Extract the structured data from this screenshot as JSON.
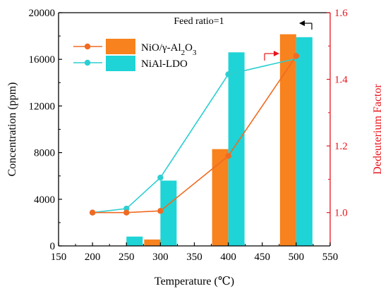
{
  "chart_data": {
    "type": "bar+line",
    "x_axis": {
      "label": "Temperature (℃)",
      "range": [
        150,
        550
      ],
      "ticks": [
        150,
        200,
        250,
        300,
        350,
        400,
        450,
        500,
        550
      ]
    },
    "y_axis_left": {
      "label": "Concentration (ppm)",
      "range": [
        0,
        20000
      ],
      "ticks": [
        0,
        4000,
        8000,
        12000,
        16000,
        20000
      ],
      "color": "#000000"
    },
    "y_axis_right": {
      "label": "Dedeuterium Factor",
      "range": [
        0.9,
        1.6
      ],
      "ticks": [
        "1.0",
        "1.2",
        "1.4",
        "1.6"
      ],
      "color": "#e8141b"
    },
    "annotation": "Feed ratio=1",
    "series": [
      {
        "name": "NiO/γ-Al",
        "name_sub": "2",
        "name_mid": "O",
        "name_sub2": "3",
        "color": "#f7821e",
        "bars": [
          {
            "x": 250,
            "value": 0
          },
          {
            "x": 300,
            "value": 550
          },
          {
            "x": 400,
            "value": 8300
          },
          {
            "x": 500,
            "value": 18150
          }
        ],
        "line": [
          {
            "x": 200,
            "value": 1.0
          },
          {
            "x": 250,
            "value": 1.0
          },
          {
            "x": 300,
            "value": 1.005
          },
          {
            "x": 400,
            "value": 1.17
          },
          {
            "x": 500,
            "value": 1.47
          }
        ]
      },
      {
        "name": "NiAl-LDO",
        "color": "#1ed4d6",
        "bars": [
          {
            "x": 250,
            "value": 800
          },
          {
            "x": 300,
            "value": 5600
          },
          {
            "x": 400,
            "value": 16600
          },
          {
            "x": 500,
            "value": 17900
          }
        ],
        "line": [
          {
            "x": 200,
            "value": 1.0
          },
          {
            "x": 250,
            "value": 1.012
          },
          {
            "x": 300,
            "value": 1.105
          },
          {
            "x": 400,
            "value": 1.415
          },
          {
            "x": 500,
            "value": 1.462
          }
        ]
      }
    ],
    "grid": false,
    "legend_position": "top-left"
  },
  "colors": {
    "orange": "#f7821e",
    "cyan": "#1ed4d6",
    "red": "#e8141b",
    "line_orange": "#f16a22",
    "line_cyan": "#2ccfd1"
  }
}
